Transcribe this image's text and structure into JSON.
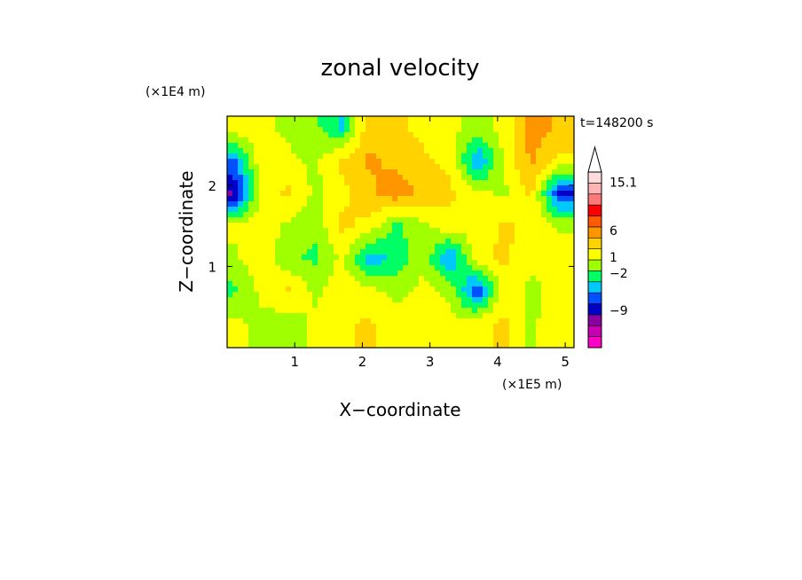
{
  "chart_data": {
    "type": "heatmap",
    "title": "zonal velocity",
    "xlabel": "X−coordinate",
    "ylabel": "Z−coordinate",
    "x_unit": "(×1E5 m)",
    "y_unit": "(×1E4 m)",
    "time_label": "t=148200 s",
    "xlim": [
      0,
      5.13
    ],
    "ylim": [
      0,
      2.85
    ],
    "xticks": [
      1,
      2,
      3,
      4,
      5
    ],
    "yticks": [
      1,
      2
    ],
    "colorbar": {
      "labels": [
        {
          "text": "15.1",
          "value": 15.1
        },
        {
          "text": "6",
          "value": 6
        },
        {
          "text": "1",
          "value": 1
        },
        {
          "text": "−2",
          "value": -2
        },
        {
          "text": "−9",
          "value": -9
        }
      ],
      "levels": [
        {
          "color": "#ff00c8"
        },
        {
          "color": "#c800b4"
        },
        {
          "color": "#8c00a0"
        },
        {
          "color": "#0000c8"
        },
        {
          "color": "#0050ff"
        },
        {
          "color": "#00c8ff"
        },
        {
          "color": "#00ff64"
        },
        {
          "color": "#a0ff00"
        },
        {
          "color": "#ffff00"
        },
        {
          "color": "#ffd200"
        },
        {
          "color": "#ff9600"
        },
        {
          "color": "#ff5a00"
        },
        {
          "color": "#ff0000"
        },
        {
          "color": "#ff7878"
        },
        {
          "color": "#ffb4b4"
        },
        {
          "color": "#ffdcdc"
        }
      ],
      "extend": "max"
    },
    "field": {
      "xs": [
        0.1,
        0.5,
        0.9,
        1.3,
        1.7,
        2.1,
        2.5,
        2.9,
        3.3,
        3.7,
        4.1,
        4.5,
        4.9
      ],
      "zs": [
        2.7,
        2.3,
        1.9,
        1.5,
        1.1,
        0.7,
        0.3
      ],
      "values": [
        [
          2,
          1,
          0,
          -1,
          -4,
          4,
          3,
          2,
          1,
          0,
          1,
          6,
          4
        ],
        [
          -6,
          2,
          1,
          0,
          3,
          5,
          4,
          3,
          2,
          -6,
          1,
          5,
          2
        ],
        [
          -10,
          1,
          3,
          0,
          2,
          4,
          6,
          4,
          3,
          1,
          0,
          3,
          -8
        ],
        [
          1,
          2,
          0,
          -1,
          3,
          2,
          -2,
          0,
          2,
          1,
          3,
          2,
          0
        ],
        [
          0,
          2,
          -1,
          -2,
          1,
          -5,
          -3,
          0,
          -6,
          2,
          3,
          1,
          2
        ],
        [
          -2,
          1,
          3,
          0,
          2,
          1,
          0,
          1,
          0,
          -8,
          2,
          0,
          1
        ],
        [
          1,
          0,
          -1,
          1,
          2,
          3,
          1,
          2,
          1,
          2,
          3,
          0,
          2
        ]
      ]
    }
  }
}
